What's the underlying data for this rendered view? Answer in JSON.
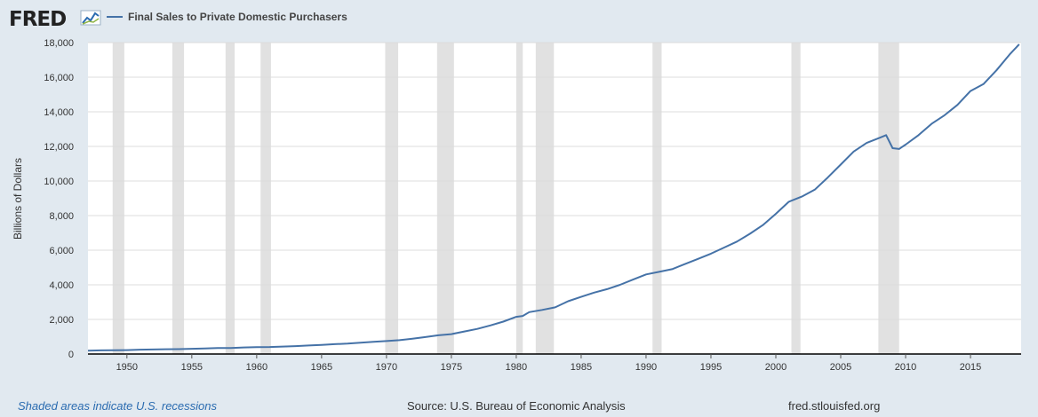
{
  "header": {
    "logo_text": "FRED",
    "legend_label": "Final Sales to Private Domestic Purchasers"
  },
  "footer": {
    "recession_note": "Shaded areas indicate U.S. recessions",
    "source": "Source: U.S. Bureau of Economic Analysis",
    "url": "fred.stlouisfed.org"
  },
  "colors": {
    "background": "#e1e9f0",
    "plot_background": "#ffffff",
    "line": "#4572a7",
    "recession": "#e1e1e1",
    "grid": "#dcdcdc",
    "logo_accent": "#2a6bb0"
  },
  "chart_data": {
    "type": "line",
    "title": "",
    "xlabel": "",
    "ylabel": "Billions of Dollars",
    "xlim": [
      1947.0,
      2018.9
    ],
    "ylim": [
      0,
      18000
    ],
    "grid": true,
    "legend_position": "top-left",
    "x_ticks": [
      "1950",
      "1955",
      "1960",
      "1965",
      "1970",
      "1975",
      "1980",
      "1985",
      "1990",
      "1995",
      "2000",
      "2005",
      "2010",
      "2015"
    ],
    "y_ticks": [
      "0",
      "2,000",
      "4,000",
      "6,000",
      "8,000",
      "10,000",
      "12,000",
      "14,000",
      "16,000",
      "18,000"
    ],
    "recessions": [
      [
        1948.9,
        1949.8
      ],
      [
        1953.5,
        1954.4
      ],
      [
        1957.6,
        1958.3
      ],
      [
        1960.3,
        1961.1
      ],
      [
        1969.9,
        1970.9
      ],
      [
        1973.9,
        1975.2
      ],
      [
        1980.0,
        1980.5
      ],
      [
        1981.5,
        1982.9
      ],
      [
        1990.5,
        1991.2
      ],
      [
        2001.2,
        2001.9
      ],
      [
        2007.9,
        2009.5
      ]
    ],
    "series": [
      {
        "name": "Final Sales to Private Domestic Purchasers",
        "x": [
          1947,
          1948,
          1949,
          1950,
          1951,
          1952,
          1953,
          1954,
          1955,
          1956,
          1957,
          1958,
          1959,
          1960,
          1961,
          1962,
          1963,
          1964,
          1965,
          1966,
          1967,
          1968,
          1969,
          1970,
          1971,
          1972,
          1973,
          1974,
          1975,
          1976,
          1977,
          1978,
          1979,
          1980,
          1980.5,
          1981,
          1982,
          1983,
          1984,
          1985,
          1986,
          1987,
          1988,
          1989,
          1990,
          1991,
          1992,
          1993,
          1994,
          1995,
          1996,
          1997,
          1998,
          1999,
          2000,
          2001,
          2002,
          2003,
          2004,
          2005,
          2006,
          2007,
          2008,
          2008.5,
          2009,
          2009.5,
          2010,
          2011,
          2012,
          2013,
          2014,
          2015,
          2016,
          2017,
          2018,
          2018.75
        ],
        "values": [
          190,
          210,
          215,
          225,
          250,
          262,
          275,
          280,
          305,
          325,
          345,
          350,
          380,
          400,
          405,
          430,
          455,
          490,
          530,
          570,
          600,
          650,
          710,
          750,
          800,
          880,
          980,
          1080,
          1150,
          1300,
          1450,
          1650,
          1870,
          2150,
          2200,
          2420,
          2550,
          2700,
          3050,
          3300,
          3550,
          3750,
          4000,
          4300,
          4600,
          4750,
          4900,
          5200,
          5500,
          5800,
          6150,
          6500,
          6950,
          7450,
          8100,
          8800,
          9100,
          9500,
          10200,
          10950,
          11700,
          12200,
          12500,
          12650,
          11900,
          11850,
          12100,
          12650,
          13300,
          13800,
          14400,
          15200,
          15600,
          16400,
          17300,
          17900
        ]
      }
    ]
  }
}
